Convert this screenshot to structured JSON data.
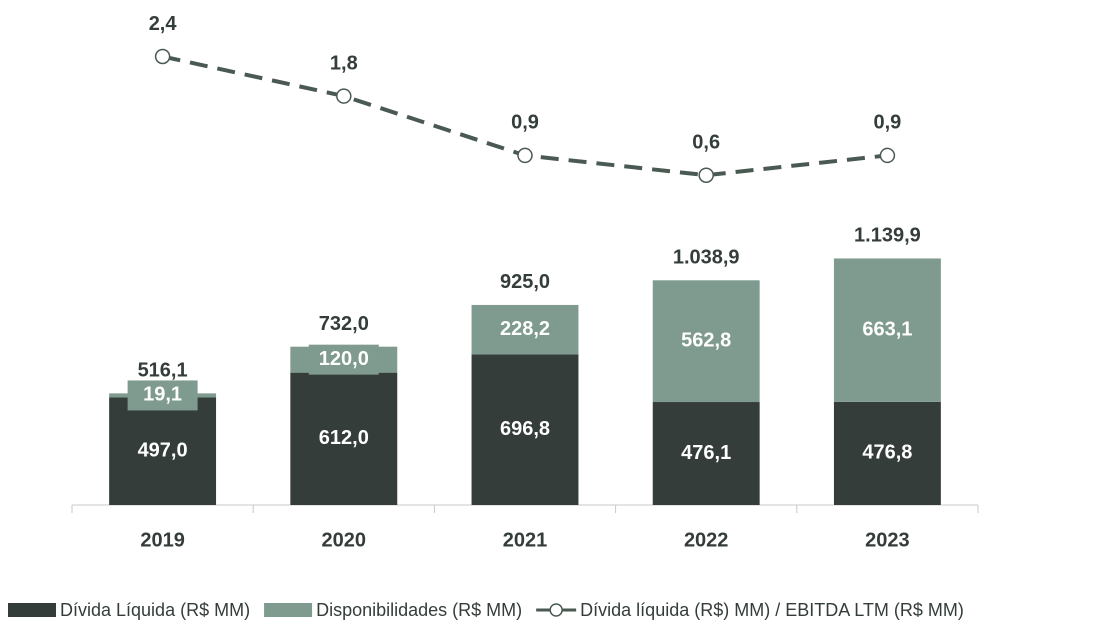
{
  "chart_data": {
    "type": "bar",
    "categories": [
      "2019",
      "2020",
      "2021",
      "2022",
      "2023"
    ],
    "series": [
      {
        "name": "Dívida Líquida (R$ MM)",
        "color": "#343d39",
        "values": [
          497.0,
          612.0,
          696.8,
          476.1,
          476.8
        ],
        "value_labels": [
          "497,0",
          "612,0",
          "696,8",
          "476,1",
          "476,8"
        ]
      },
      {
        "name": "Disponibilidades (R$ MM)",
        "color": "#7f9a8e",
        "values": [
          19.1,
          120.0,
          228.2,
          562.8,
          663.1
        ],
        "value_labels": [
          "19,1",
          "120,0",
          "228,2",
          "562,8",
          "663,1"
        ]
      },
      {
        "name": "Dívida líquida (R$) MM) / EBITDA LTM (R$ MM)",
        "type": "line",
        "axis": "y2",
        "color": "#4a5a52",
        "values": [
          2.4,
          1.8,
          0.9,
          0.6,
          0.9
        ],
        "value_labels": [
          "2,4",
          "1,8",
          "0,9",
          "0,6",
          "0,9"
        ]
      }
    ],
    "totals": [
      516.1,
      732.0,
      925.0,
      1038.9,
      1139.9
    ],
    "total_labels": [
      "516,1",
      "732,0",
      "925,0",
      "1.038,9",
      "1.139,9"
    ],
    "ylim": [
      0,
      2150
    ],
    "y2lim": [
      -4.4,
      2.65
    ],
    "stacked": true,
    "legend": "bottom"
  }
}
